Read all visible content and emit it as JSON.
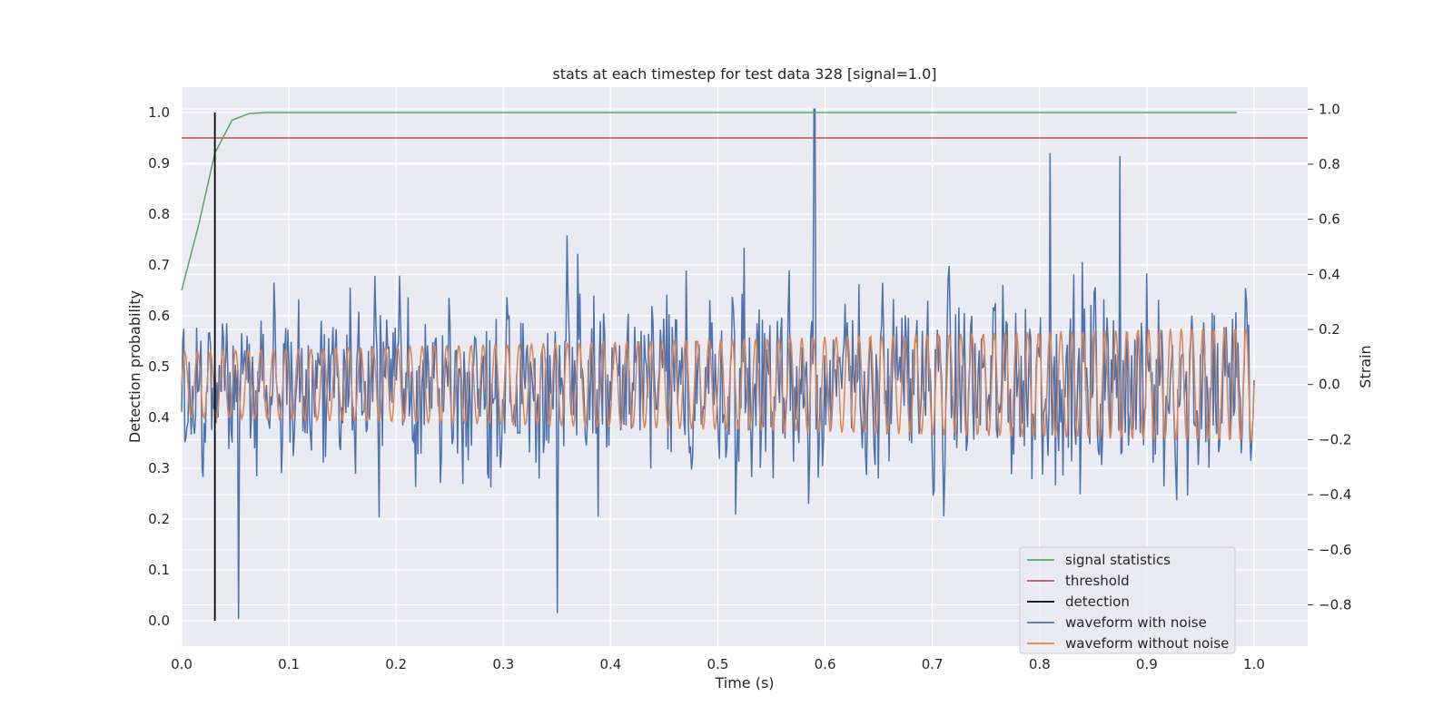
{
  "chart_data": {
    "type": "line",
    "title": "stats at each timestep for test data 328 [signal=1.0]",
    "xlabel": "Time (s)",
    "ylabel_left": "Detection probability",
    "ylabel_right": "Strain",
    "xlim": [
      0.0,
      1.05
    ],
    "ylim_left": [
      -0.05,
      1.05
    ],
    "ylim_right": [
      -0.95,
      1.08
    ],
    "x_ticks": [
      "0.0",
      "0.1",
      "0.2",
      "0.3",
      "0.4",
      "0.5",
      "0.6",
      "0.7",
      "0.8",
      "0.9",
      "1.0"
    ],
    "y_ticks_left": [
      "0.0",
      "0.1",
      "0.2",
      "0.3",
      "0.4",
      "0.5",
      "0.6",
      "0.7",
      "0.8",
      "0.9",
      "1.0"
    ],
    "y_ticks_right": [
      "−0.8",
      "−0.6",
      "−0.4",
      "−0.2",
      "0.0",
      "0.2",
      "0.4",
      "0.6",
      "0.8",
      "1.0"
    ],
    "grid": true,
    "legend_position": "bottom-right",
    "colors": {
      "signal_statistics": "#55a868",
      "threshold": "#c44e52",
      "detection": "#000000",
      "waveform_with_noise": "#4c72b0",
      "waveform_without_noise": "#dd8452",
      "background": "#eaeaf2"
    },
    "series": [
      {
        "name": "signal statistics",
        "axis": "left",
        "x": [
          0.0,
          0.016,
          0.031,
          0.047,
          0.063,
          0.078,
          0.094,
          0.2,
          0.4,
          0.6,
          0.8,
          0.984
        ],
        "y": [
          0.65,
          0.78,
          0.92,
          0.985,
          0.998,
          1.0,
          1.0,
          1.0,
          1.0,
          1.0,
          1.0,
          1.0
        ]
      },
      {
        "name": "threshold",
        "axis": "left",
        "x": [
          0.0,
          1.05
        ],
        "y": [
          0.95,
          0.95
        ]
      },
      {
        "name": "detection",
        "axis": "left",
        "x": [
          0.031,
          0.031
        ],
        "y": [
          0.0,
          1.0
        ]
      },
      {
        "name": "waveform with noise",
        "axis": "right",
        "samples": 1000,
        "x_range": [
          0.0,
          1.0
        ],
        "amplitude_range": [
          -0.85,
          1.0
        ],
        "notable_points": [
          {
            "x": 0.053,
            "y": -0.86
          },
          {
            "x": 0.35,
            "y": -0.83
          },
          {
            "x": 0.59,
            "y": 1.0
          },
          {
            "x": 0.81,
            "y": 0.84
          },
          {
            "x": 0.875,
            "y": 0.83
          }
        ]
      },
      {
        "name": "waveform without noise",
        "axis": "right",
        "samples": 1000,
        "x_range": [
          0.0,
          1.0
        ],
        "amplitude_start": 0.12,
        "amplitude_end": 0.21,
        "cycles": 84
      }
    ],
    "legend": [
      "signal statistics",
      "threshold",
      "detection",
      "waveform with noise",
      "waveform without noise"
    ]
  }
}
